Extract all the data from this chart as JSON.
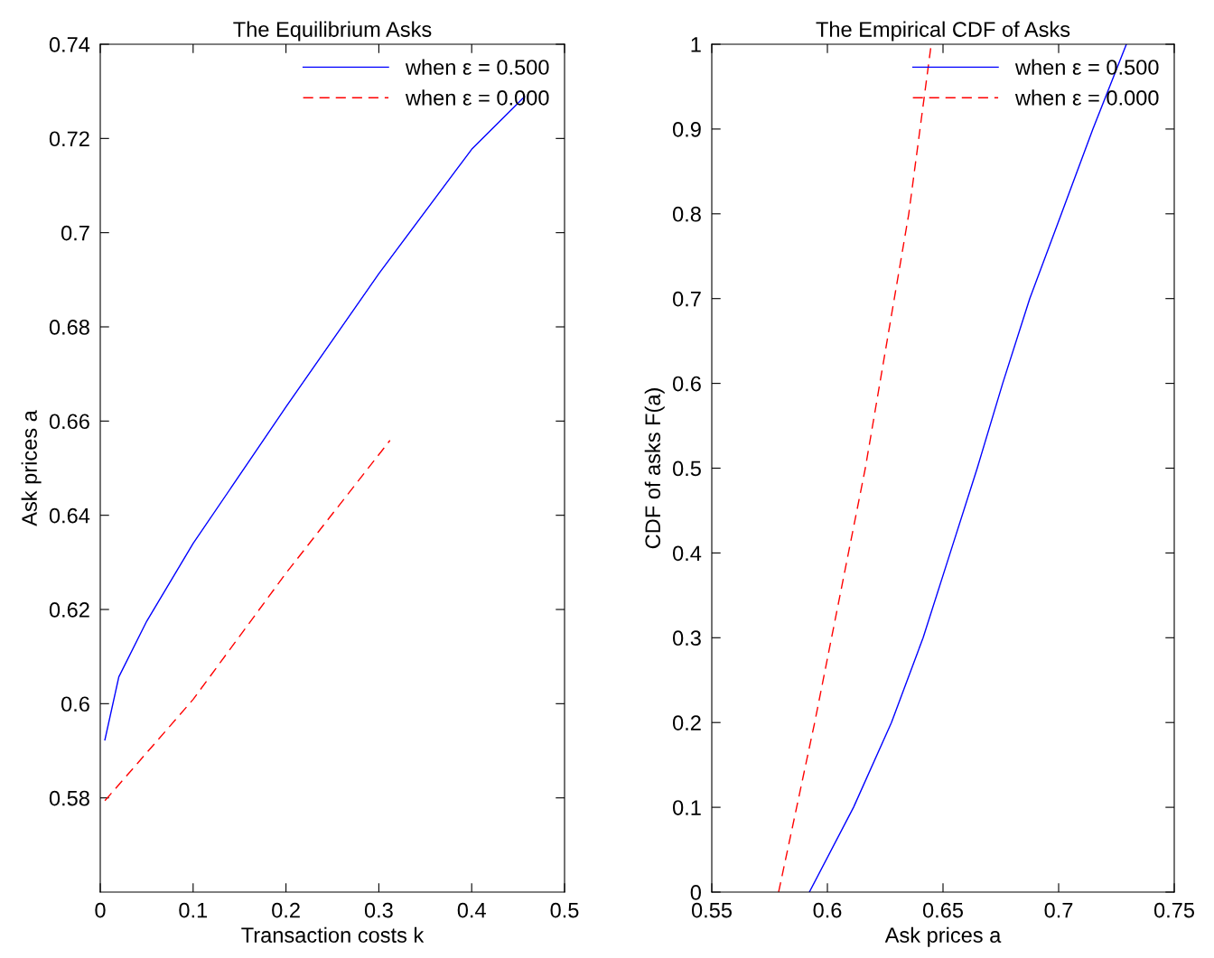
{
  "chart_data": [
    {
      "type": "line",
      "title": "The Equilibrium Asks",
      "xlabel": "Transaction costs k",
      "ylabel": "Ask prices a",
      "xlim": [
        0,
        0.5
      ],
      "xticks": [
        0,
        0.1,
        0.2,
        0.3,
        0.4,
        0.5
      ],
      "ylim": [
        0.56,
        0.74
      ],
      "yticks": [
        0.58,
        0.6,
        0.62,
        0.64,
        0.66,
        0.68,
        0.7,
        0.72,
        0.74
      ],
      "grid": false,
      "legend": "top right",
      "marker": "none",
      "series": [
        {
          "name": "when ε = 0.500",
          "color": "#0000ff",
          "line_style": "solid",
          "x": [
            0.005,
            0.02,
            0.05,
            0.1,
            0.2,
            0.3,
            0.4,
            0.457
          ],
          "values": [
            0.5923,
            0.6057,
            0.6175,
            0.634,
            0.663,
            0.6913,
            0.7177,
            0.7289
          ]
        },
        {
          "name": "when ε = 0.000",
          "color": "#ff0000",
          "line_style": "dashed",
          "x": [
            0.005,
            0.1,
            0.2,
            0.312
          ],
          "values": [
            0.5794,
            0.6009,
            0.6277,
            0.6559
          ]
        }
      ]
    },
    {
      "type": "line",
      "title": "The Empirical CDF of Asks",
      "xlabel": "Ask prices a",
      "ylabel": "CDF of asks F(a)",
      "xlim": [
        0.55,
        0.75
      ],
      "xticks": [
        0.55,
        0.6,
        0.65,
        0.7,
        0.75
      ],
      "ylim": [
        0,
        1
      ],
      "yticks": [
        0,
        0.1,
        0.2,
        0.3,
        0.4,
        0.5,
        0.6,
        0.7,
        0.8,
        0.9,
        1
      ],
      "grid": false,
      "legend": "top right",
      "marker": "none",
      "series": [
        {
          "name": "when ε = 0.500",
          "color": "#0000ff",
          "line_style": "solid",
          "x": [
            0.5922,
            0.6113,
            0.6277,
            0.6414,
            0.6531,
            0.6648,
            0.6758,
            0.6875,
            0.7012,
            0.7148,
            0.7293
          ],
          "values": [
            0,
            0.1,
            0.2,
            0.3,
            0.4,
            0.5,
            0.6,
            0.7,
            0.8,
            0.9,
            1
          ]
        },
        {
          "name": "when ε = 0.000",
          "color": "#ff0000",
          "line_style": "dashed",
          "x": [
            0.5789,
            0.5945,
            0.6164,
            0.6352,
            0.6449
          ],
          "values": [
            0,
            0.2,
            0.5,
            0.8,
            1
          ]
        }
      ]
    }
  ]
}
